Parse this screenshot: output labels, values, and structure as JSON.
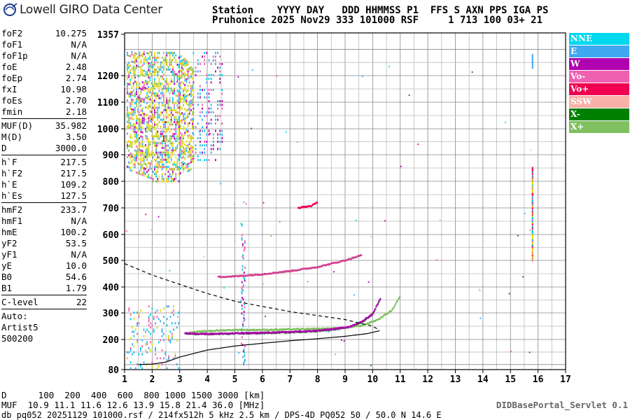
{
  "header": {
    "logo_text": "Lowell GIRO Data Center",
    "line1": "Station    YYYY DAY   DDD HHMMSS P1  FFS S AXN PPS IGA PS",
    "line2": "Pruhonice 2025 Nov29 333 101000 RSF     1 713 100 03+ 21"
  },
  "params": {
    "group1": [
      {
        "name": "foF2",
        "value": "10.275"
      },
      {
        "name": "foF1",
        "value": "N/A"
      },
      {
        "name": "foF1p",
        "value": "N/A"
      },
      {
        "name": "foE",
        "value": "2.48"
      },
      {
        "name": "foEp",
        "value": "2.74"
      },
      {
        "name": "fxI",
        "value": "10.98"
      },
      {
        "name": "foEs",
        "value": "2.70"
      },
      {
        "name": "fmin",
        "value": "2.18"
      }
    ],
    "group2": [
      {
        "name": "MUF(D)",
        "value": "35.982"
      },
      {
        "name": "M(D)",
        "value": "3.50"
      },
      {
        "name": "D",
        "value": "3000.0"
      }
    ],
    "group3": [
      {
        "name": "h`F",
        "value": "217.5"
      },
      {
        "name": "h`F2",
        "value": "217.5"
      },
      {
        "name": "h`E",
        "value": "109.2"
      },
      {
        "name": "h`Es",
        "value": "127.5"
      }
    ],
    "group4": [
      {
        "name": "hmF2",
        "value": "233.7"
      },
      {
        "name": "hmF1",
        "value": "N/A"
      },
      {
        "name": "hmE",
        "value": "100.2"
      },
      {
        "name": "yF2",
        "value": "53.5"
      },
      {
        "name": "yF1",
        "value": "N/A"
      },
      {
        "name": "yE",
        "value": "10.0"
      },
      {
        "name": "B0",
        "value": "54.6"
      },
      {
        "name": "B1",
        "value": "1.79"
      }
    ],
    "group5": [
      {
        "name": "C-level",
        "value": "22"
      }
    ],
    "auto_label": "Auto:",
    "artist": "Artist5",
    "artist_version": "500200"
  },
  "legend": [
    {
      "label": "NNE",
      "color": "#00d8f0"
    },
    {
      "label": "E",
      "color": "#40a8f0"
    },
    {
      "label": "W",
      "color": "#b000b0"
    },
    {
      "label": "Vo-",
      "color": "#f060b0"
    },
    {
      "label": "Vo+",
      "color": "#f00050"
    },
    {
      "label": "SSW",
      "color": "#f8b0a8"
    },
    {
      "label": "X-",
      "color": "#008000"
    },
    {
      "label": "X+",
      "color": "#80c060"
    }
  ],
  "footer": {
    "d_line": "D      100  200  400  600  800 1000 1500 3000 [km]",
    "muf_line": "MUF  10.9 11.1 11.6 12.6 13.9 15.8 21.4 36.0 [MHz]",
    "file_line": "db pq052 20251129 101000.rsf / 214fx512h 5 kHz 2.5 km / DPS-4D PQ052 50 / 50.0 N 14.6 E",
    "servlet": "DIDBasePortal_Servlet 0.1"
  },
  "chart_data": {
    "type": "scatter",
    "title": "",
    "xlabel": "",
    "ylabel": "",
    "xlim": [
      1,
      17
    ],
    "ylim": [
      80,
      1357
    ],
    "y_scale": "reciprocal-like (ionogram virtual height)",
    "x_ticks": [
      "1",
      "2",
      "3",
      "4",
      "5",
      "6",
      "7",
      "8",
      "9",
      "10",
      "11",
      "12",
      "13",
      "14",
      "15",
      "16",
      "17"
    ],
    "y_ticks": [
      "80",
      "200",
      "300",
      "400",
      "500",
      "600",
      "700",
      "800",
      "900",
      "1000",
      "1100",
      "1200",
      "1357"
    ],
    "grid": true,
    "series": [
      {
        "name": "X-",
        "type": "trace",
        "x": [
          3.2,
          4,
          5,
          6,
          7,
          8,
          8.6,
          9.2,
          9.6,
          10.0,
          10.3
        ],
        "y": [
          222,
          220,
          222,
          224,
          227,
          232,
          238,
          248,
          265,
          295,
          360
        ]
      },
      {
        "name": "X+",
        "type": "trace",
        "x": [
          3.4,
          4,
          5,
          6,
          7,
          8,
          9,
          9.6,
          10.2,
          10.7,
          11.0
        ],
        "y": [
          226,
          232,
          236,
          236,
          238,
          240,
          244,
          252,
          275,
          310,
          365
        ]
      },
      {
        "name": "W",
        "type": "trace",
        "x": [
          3.2,
          4,
          5,
          6,
          7,
          8,
          8.6,
          9.2,
          9.6,
          10.0,
          10.3
        ],
        "y": [
          223,
          221,
          223,
          225,
          228,
          233,
          239,
          249,
          266,
          296,
          358
        ]
      },
      {
        "name": "Vo-",
        "type": "trace",
        "x": [
          4.4,
          5,
          6,
          7,
          8,
          9,
          9.6
        ],
        "y": [
          438,
          440,
          448,
          460,
          475,
          500,
          520
        ]
      },
      {
        "name": "Vo+",
        "type": "trace",
        "x": [
          7.3,
          7.8,
          8.0
        ],
        "y": [
          700,
          708,
          722
        ]
      }
    ],
    "profile_solid": {
      "x": [
        1.5,
        2.0,
        2.5,
        3.0,
        4,
        5,
        6,
        7,
        8,
        9,
        9.8,
        10.275
      ],
      "y": [
        100,
        102,
        110,
        130,
        158,
        174,
        185,
        195,
        203,
        212,
        222,
        233.7
      ]
    },
    "profile_dashed": {
      "x": [
        1.0,
        2.0,
        3.0,
        4.0,
        5.0,
        6.0,
        7.0,
        8.0,
        9.0,
        10.0,
        10.275
      ],
      "y": [
        488,
        445,
        410,
        375,
        345,
        325,
        305,
        290,
        275,
        250,
        233.7
      ]
    }
  }
}
